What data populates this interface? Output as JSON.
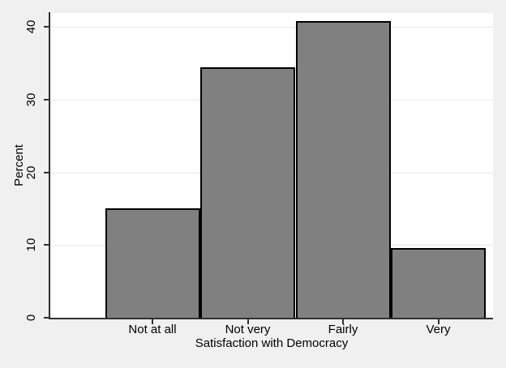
{
  "chart_data": {
    "type": "bar",
    "title": "",
    "xlabel": "Satisfaction with Democracy",
    "ylabel": "Percent",
    "categories": [
      "Not at all",
      "Not very",
      "Fairly",
      "Very"
    ],
    "values": [
      15.1,
      34.4,
      40.8,
      9.6
    ],
    "yticks": [
      0,
      10,
      20,
      30,
      40
    ],
    "ylim": [
      0,
      41.9
    ],
    "grid": true,
    "legend": "none",
    "colors": {
      "bar_fill": "#808080",
      "bar_border": "#000000",
      "plot_background": "#ffffff",
      "figure_background": "#f0f0f0",
      "gridline": "#e6e6e6",
      "axis": "#303030",
      "text": "#000000"
    }
  }
}
